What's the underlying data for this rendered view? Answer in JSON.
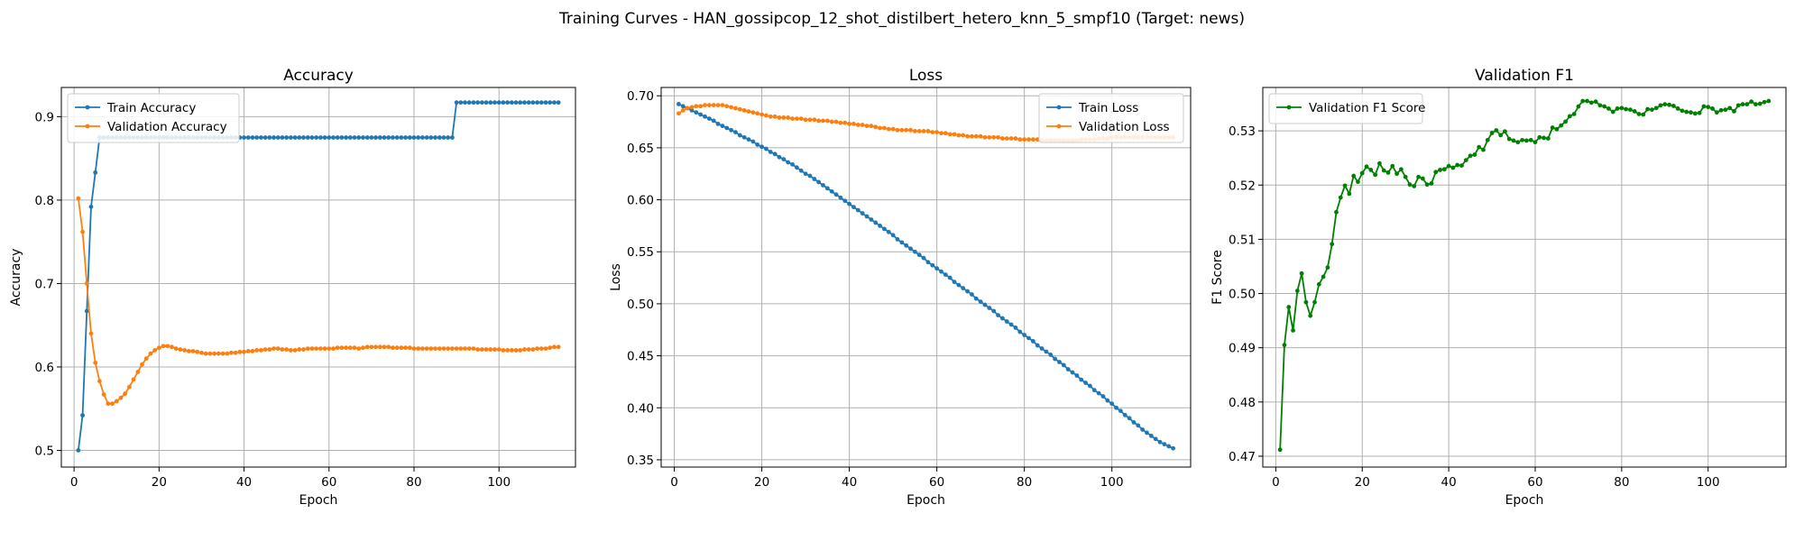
{
  "figure": {
    "title": "Training Curves - HAN_gossipcop_12_shot_distilbert_hetero_knn_5_smpf10 (Target: news)"
  },
  "chart_data": [
    {
      "type": "line",
      "title": "Accuracy",
      "xlabel": "Epoch",
      "ylabel": "Accuracy",
      "xlim": [
        -3,
        118
      ],
      "ylim": [
        0.48,
        0.935
      ],
      "xticks": [
        0,
        20,
        40,
        60,
        80,
        100
      ],
      "yticks": [
        0.5,
        0.6,
        0.7,
        0.8,
        0.9
      ],
      "ytick_decimals": 1,
      "grid": true,
      "legend": "upper-left",
      "series": [
        {
          "name": "Train Accuracy",
          "color": "#1f77b4",
          "x_start": 1,
          "x_step": 1,
          "values": [
            0.5,
            0.542,
            0.667,
            0.792,
            0.833,
            0.875,
            0.875,
            0.875,
            0.875,
            0.875,
            0.875,
            0.875,
            0.875,
            0.875,
            0.875,
            0.875,
            0.875,
            0.875,
            0.875,
            0.875,
            0.875,
            0.875,
            0.875,
            0.875,
            0.875,
            0.875,
            0.875,
            0.875,
            0.875,
            0.875,
            0.875,
            0.875,
            0.875,
            0.875,
            0.875,
            0.875,
            0.875,
            0.875,
            0.875,
            0.875,
            0.875,
            0.875,
            0.875,
            0.875,
            0.875,
            0.875,
            0.875,
            0.875,
            0.875,
            0.875,
            0.875,
            0.875,
            0.875,
            0.875,
            0.875,
            0.875,
            0.875,
            0.875,
            0.875,
            0.875,
            0.875,
            0.875,
            0.875,
            0.875,
            0.875,
            0.875,
            0.875,
            0.875,
            0.875,
            0.875,
            0.875,
            0.875,
            0.875,
            0.875,
            0.875,
            0.875,
            0.875,
            0.875,
            0.875,
            0.875,
            0.875,
            0.875,
            0.875,
            0.875,
            0.875,
            0.875,
            0.875,
            0.875,
            0.875,
            0.917,
            0.917,
            0.917,
            0.917,
            0.917,
            0.917,
            0.917,
            0.917,
            0.917,
            0.917,
            0.917,
            0.917,
            0.917,
            0.917,
            0.917,
            0.917,
            0.917,
            0.917,
            0.917,
            0.917,
            0.917,
            0.917,
            0.917,
            0.917,
            0.917
          ]
        },
        {
          "name": "Validation Accuracy",
          "color": "#ff7f0e",
          "x_start": 1,
          "x_step": 1,
          "values": [
            0.802,
            0.762,
            0.7,
            0.64,
            0.605,
            0.583,
            0.567,
            0.556,
            0.556,
            0.559,
            0.563,
            0.568,
            0.576,
            0.585,
            0.594,
            0.603,
            0.61,
            0.616,
            0.62,
            0.623,
            0.625,
            0.625,
            0.624,
            0.622,
            0.621,
            0.62,
            0.619,
            0.619,
            0.618,
            0.617,
            0.616,
            0.616,
            0.616,
            0.616,
            0.616,
            0.616,
            0.617,
            0.617,
            0.618,
            0.618,
            0.619,
            0.619,
            0.62,
            0.62,
            0.621,
            0.621,
            0.622,
            0.622,
            0.621,
            0.621,
            0.62,
            0.62,
            0.621,
            0.621,
            0.622,
            0.622,
            0.622,
            0.622,
            0.622,
            0.622,
            0.622,
            0.623,
            0.623,
            0.623,
            0.623,
            0.623,
            0.622,
            0.623,
            0.624,
            0.624,
            0.624,
            0.624,
            0.624,
            0.624,
            0.623,
            0.623,
            0.623,
            0.623,
            0.623,
            0.622,
            0.622,
            0.622,
            0.622,
            0.622,
            0.622,
            0.622,
            0.622,
            0.622,
            0.622,
            0.622,
            0.622,
            0.622,
            0.622,
            0.622,
            0.621,
            0.621,
            0.621,
            0.621,
            0.621,
            0.621,
            0.62,
            0.62,
            0.62,
            0.62,
            0.62,
            0.621,
            0.621,
            0.621,
            0.622,
            0.622,
            0.622,
            0.623,
            0.624,
            0.624
          ]
        }
      ]
    },
    {
      "type": "line",
      "title": "Loss",
      "xlabel": "Epoch",
      "ylabel": "Loss",
      "xlim": [
        -3,
        118
      ],
      "ylim": [
        0.343,
        0.708
      ],
      "xticks": [
        0,
        20,
        40,
        60,
        80,
        100
      ],
      "yticks": [
        0.35,
        0.4,
        0.45,
        0.5,
        0.55,
        0.6,
        0.65,
        0.7
      ],
      "ytick_decimals": 2,
      "grid": true,
      "legend": "upper-right",
      "series": [
        {
          "name": "Train Loss",
          "color": "#1f77b4",
          "x_start": 1,
          "x_step": 1,
          "values": [
            0.692,
            0.69,
            0.688,
            0.686,
            0.684,
            0.682,
            0.68,
            0.678,
            0.676,
            0.673,
            0.671,
            0.669,
            0.667,
            0.665,
            0.662,
            0.66,
            0.658,
            0.656,
            0.653,
            0.651,
            0.649,
            0.646,
            0.644,
            0.641,
            0.639,
            0.636,
            0.634,
            0.631,
            0.628,
            0.625,
            0.623,
            0.62,
            0.617,
            0.614,
            0.611,
            0.608,
            0.605,
            0.602,
            0.599,
            0.596,
            0.593,
            0.59,
            0.587,
            0.584,
            0.581,
            0.578,
            0.575,
            0.572,
            0.569,
            0.566,
            0.562,
            0.559,
            0.556,
            0.553,
            0.55,
            0.547,
            0.544,
            0.54,
            0.537,
            0.534,
            0.531,
            0.528,
            0.525,
            0.521,
            0.518,
            0.515,
            0.512,
            0.509,
            0.505,
            0.502,
            0.499,
            0.496,
            0.493,
            0.489,
            0.486,
            0.483,
            0.48,
            0.477,
            0.473,
            0.47,
            0.467,
            0.464,
            0.46,
            0.457,
            0.454,
            0.451,
            0.447,
            0.444,
            0.441,
            0.437,
            0.434,
            0.431,
            0.427,
            0.424,
            0.421,
            0.417,
            0.414,
            0.411,
            0.407,
            0.404,
            0.4,
            0.397,
            0.393,
            0.39,
            0.386,
            0.383,
            0.379,
            0.376,
            0.373,
            0.37,
            0.367,
            0.365,
            0.363,
            0.361
          ]
        },
        {
          "name": "Validation Loss",
          "color": "#ff7f0e",
          "x_start": 1,
          "x_step": 1,
          "values": [
            0.683,
            0.686,
            0.688,
            0.689,
            0.69,
            0.69,
            0.691,
            0.691,
            0.691,
            0.691,
            0.691,
            0.69,
            0.689,
            0.688,
            0.687,
            0.686,
            0.685,
            0.684,
            0.683,
            0.682,
            0.681,
            0.68,
            0.68,
            0.679,
            0.679,
            0.679,
            0.678,
            0.678,
            0.678,
            0.677,
            0.677,
            0.677,
            0.676,
            0.676,
            0.676,
            0.675,
            0.675,
            0.674,
            0.674,
            0.673,
            0.673,
            0.672,
            0.672,
            0.671,
            0.671,
            0.67,
            0.669,
            0.669,
            0.668,
            0.668,
            0.667,
            0.667,
            0.667,
            0.667,
            0.666,
            0.666,
            0.666,
            0.666,
            0.665,
            0.665,
            0.664,
            0.664,
            0.663,
            0.663,
            0.662,
            0.662,
            0.661,
            0.661,
            0.661,
            0.661,
            0.66,
            0.66,
            0.66,
            0.66,
            0.659,
            0.659,
            0.659,
            0.659,
            0.658,
            0.658,
            0.658,
            0.658,
            0.658,
            0.657,
            0.657,
            0.657,
            0.657,
            0.657,
            0.657,
            0.657,
            0.657,
            0.657,
            0.658,
            0.658,
            0.658,
            0.658,
            0.659,
            0.659,
            0.659,
            0.66,
            0.66,
            0.66,
            0.66,
            0.66,
            0.66,
            0.66,
            0.66,
            0.66,
            0.66,
            0.66,
            0.66,
            0.66,
            0.66,
            0.66
          ]
        }
      ]
    },
    {
      "type": "line",
      "title": "Validation F1",
      "xlabel": "Epoch",
      "ylabel": "F1 Score",
      "xlim": [
        -3,
        118
      ],
      "ylim": [
        0.468,
        0.538
      ],
      "xticks": [
        0,
        20,
        40,
        60,
        80,
        100
      ],
      "yticks": [
        0.47,
        0.48,
        0.49,
        0.5,
        0.51,
        0.52,
        0.53
      ],
      "ytick_decimals": 2,
      "grid": true,
      "legend": "upper-left",
      "series": [
        {
          "name": "Validation F1 Score",
          "color": "#008000",
          "x_start": 1,
          "x_step": 1,
          "values": [
            0.4712,
            0.4905,
            0.4975,
            0.4932,
            0.5005,
            0.5037,
            0.4984,
            0.4959,
            0.4984,
            0.5017,
            0.5031,
            0.5048,
            0.5091,
            0.515,
            0.5177,
            0.5199,
            0.5184,
            0.5217,
            0.5206,
            0.5222,
            0.5234,
            0.5228,
            0.5219,
            0.524,
            0.5227,
            0.5223,
            0.5235,
            0.5221,
            0.5229,
            0.5215,
            0.5201,
            0.5198,
            0.5215,
            0.5212,
            0.5201,
            0.5203,
            0.5224,
            0.5228,
            0.5229,
            0.5235,
            0.5232,
            0.5237,
            0.5236,
            0.5246,
            0.5254,
            0.5256,
            0.527,
            0.5265,
            0.5283,
            0.5296,
            0.5301,
            0.5292,
            0.5299,
            0.5285,
            0.5282,
            0.5279,
            0.5283,
            0.5282,
            0.5283,
            0.5279,
            0.5288,
            0.5287,
            0.5286,
            0.5306,
            0.5303,
            0.531,
            0.5317,
            0.5327,
            0.5331,
            0.5345,
            0.5355,
            0.5355,
            0.5352,
            0.5354,
            0.5347,
            0.5345,
            0.5341,
            0.5335,
            0.5341,
            0.5342,
            0.534,
            0.5339,
            0.5336,
            0.5331,
            0.533,
            0.534,
            0.5339,
            0.5342,
            0.5347,
            0.5349,
            0.5348,
            0.5346,
            0.5341,
            0.5337,
            0.5335,
            0.5334,
            0.5332,
            0.5333,
            0.5345,
            0.5344,
            0.5341,
            0.5334,
            0.5338,
            0.5339,
            0.5342,
            0.5336,
            0.5347,
            0.5349,
            0.5349,
            0.5354,
            0.5349,
            0.535,
            0.5353,
            0.5355
          ]
        }
      ]
    }
  ]
}
